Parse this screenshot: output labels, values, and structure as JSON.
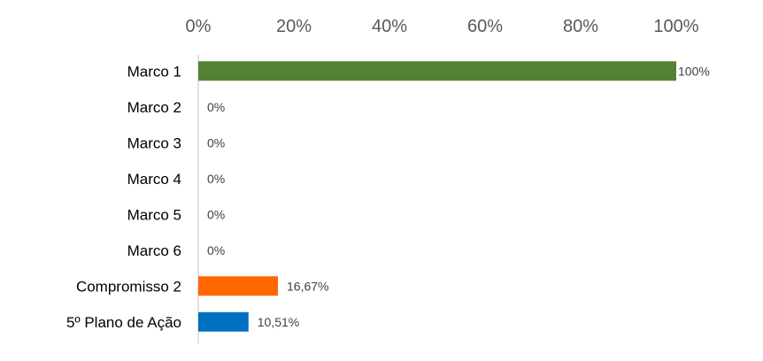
{
  "chart_data": {
    "type": "bar",
    "orientation": "horizontal",
    "categories": [
      "Marco 1",
      "Marco 2",
      "Marco 3",
      "Marco 4",
      "Marco 5",
      "Marco 6",
      "Compromisso 2",
      "5º Plano de Ação"
    ],
    "values": [
      100,
      0,
      0,
      0,
      0,
      0,
      16.67,
      10.51
    ],
    "data_labels": [
      "100%",
      "0%",
      "0%",
      "0%",
      "0%",
      "0%",
      "16,67%",
      "10,51%"
    ],
    "bar_colors": [
      "#548235",
      "#548235",
      "#548235",
      "#548235",
      "#548235",
      "#548235",
      "#FF6600",
      "#0070C0"
    ],
    "x_ticks": [
      0,
      20,
      40,
      60,
      80,
      100
    ],
    "x_tick_labels": [
      "0%",
      "20%",
      "40%",
      "60%",
      "80%",
      "100%"
    ],
    "xlim": [
      0,
      100
    ],
    "x_axis_position": "top",
    "grid": false,
    "legend": "none",
    "title": "",
    "xlabel": "",
    "ylabel": ""
  }
}
